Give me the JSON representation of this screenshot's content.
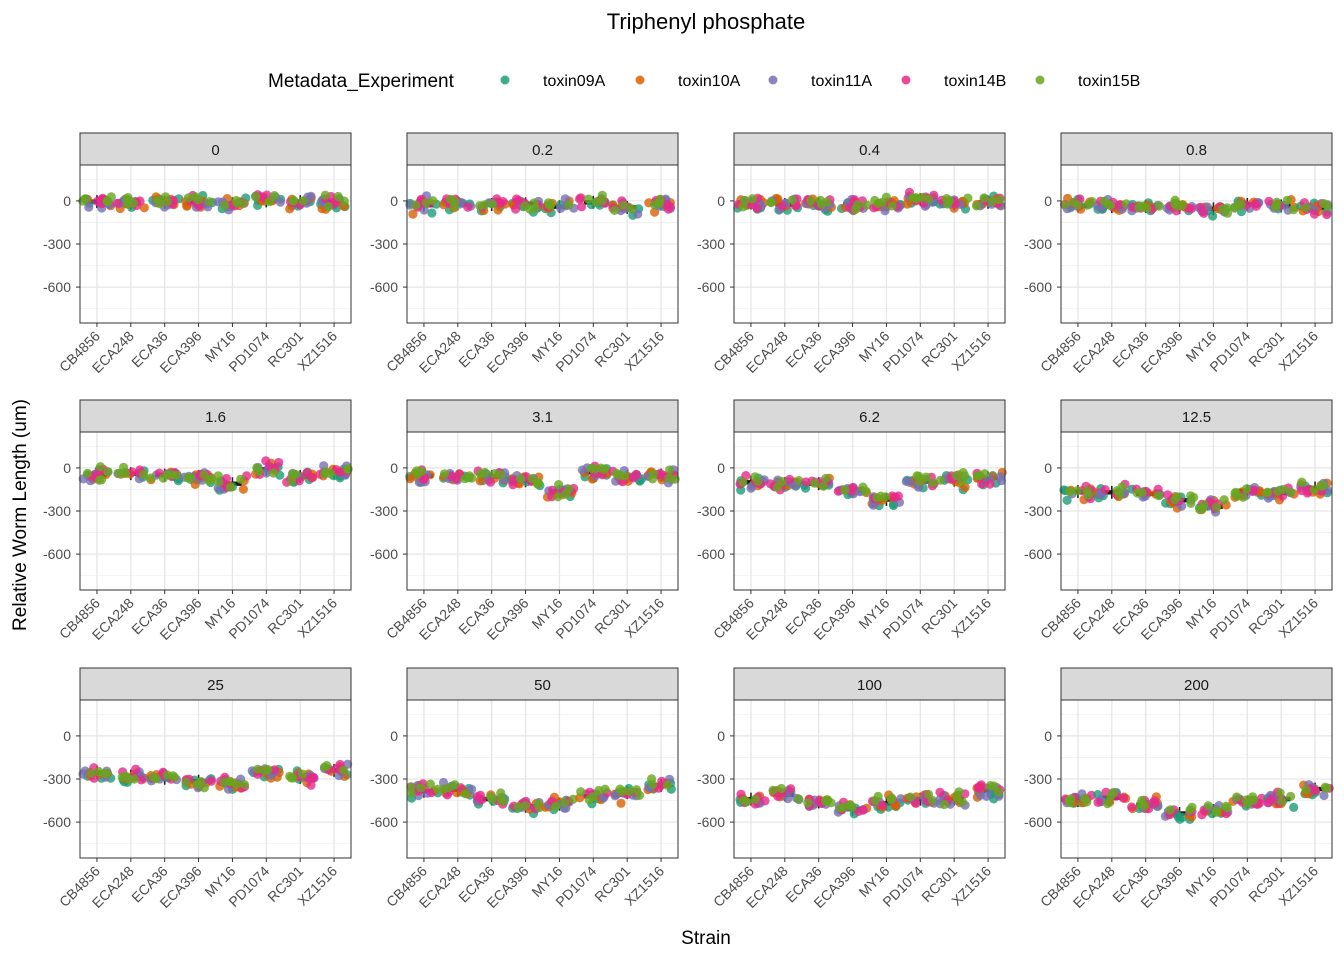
{
  "chart_data": {
    "type": "scatter",
    "title": "Triphenyl phosphate",
    "xlabel": "Strain",
    "ylabel": "Relative Worm Length (um)",
    "legend": {
      "title": "Metadata_Experiment",
      "position": "top",
      "entries": [
        "toxin09A",
        "toxin10A",
        "toxin11A",
        "toxin14B",
        "toxin15B"
      ]
    },
    "colors": {
      "toxin09A": "#1b9e77",
      "toxin10A": "#d95f02",
      "toxin11A": "#7570b3",
      "toxin14B": "#e7298a",
      "toxin15B": "#66a61e"
    },
    "categories": [
      "CB4856",
      "ECA248",
      "ECA36",
      "ECA396",
      "MY16",
      "PD1074",
      "RC301",
      "XZ1516"
    ],
    "ylim": [
      -850,
      250
    ],
    "yticks": [
      0,
      -300,
      -600
    ],
    "ytick_labels": [
      "0",
      "-300",
      "-600"
    ],
    "grid": true,
    "facets": [
      {
        "label": "0",
        "medians": [
          -5,
          -15,
          -10,
          -5,
          -20,
          0,
          -5,
          -5
        ]
      },
      {
        "label": "0.2",
        "medians": [
          -30,
          -20,
          -25,
          -20,
          -40,
          -10,
          -45,
          -20
        ]
      },
      {
        "label": "0.4",
        "medians": [
          -15,
          -25,
          -20,
          -25,
          -30,
          10,
          -20,
          -10
        ]
      },
      {
        "label": "0.8",
        "medians": [
          -35,
          -40,
          -40,
          -45,
          -55,
          -25,
          -35,
          -50
        ]
      },
      {
        "label": "1.6",
        "medians": [
          -50,
          -40,
          -50,
          -60,
          -110,
          -10,
          -60,
          -30
        ]
      },
      {
        "label": "3.1",
        "medians": [
          -55,
          -60,
          -60,
          -90,
          -165,
          -30,
          -60,
          -50
        ]
      },
      {
        "label": "6.2",
        "medians": [
          -100,
          -110,
          -110,
          -155,
          -220,
          -95,
          -85,
          -70
        ]
      },
      {
        "label": "12.5",
        "medians": [
          -165,
          -170,
          -180,
          -225,
          -270,
          -160,
          -175,
          -140
        ]
      },
      {
        "label": "25",
        "medians": [
          -255,
          -280,
          -295,
          -315,
          -340,
          -255,
          -290,
          -240
        ]
      },
      {
        "label": "50",
        "medians": [
          -385,
          -375,
          -440,
          -490,
          -475,
          -420,
          -395,
          -345
        ]
      },
      {
        "label": "100",
        "medians": [
          -440,
          -410,
          -460,
          -510,
          -470,
          -440,
          -440,
          -380
        ]
      },
      {
        "label": "200",
        "medians": [
          -450,
          -430,
          -480,
          -540,
          -520,
          -460,
          -440,
          -370
        ]
      }
    ]
  }
}
